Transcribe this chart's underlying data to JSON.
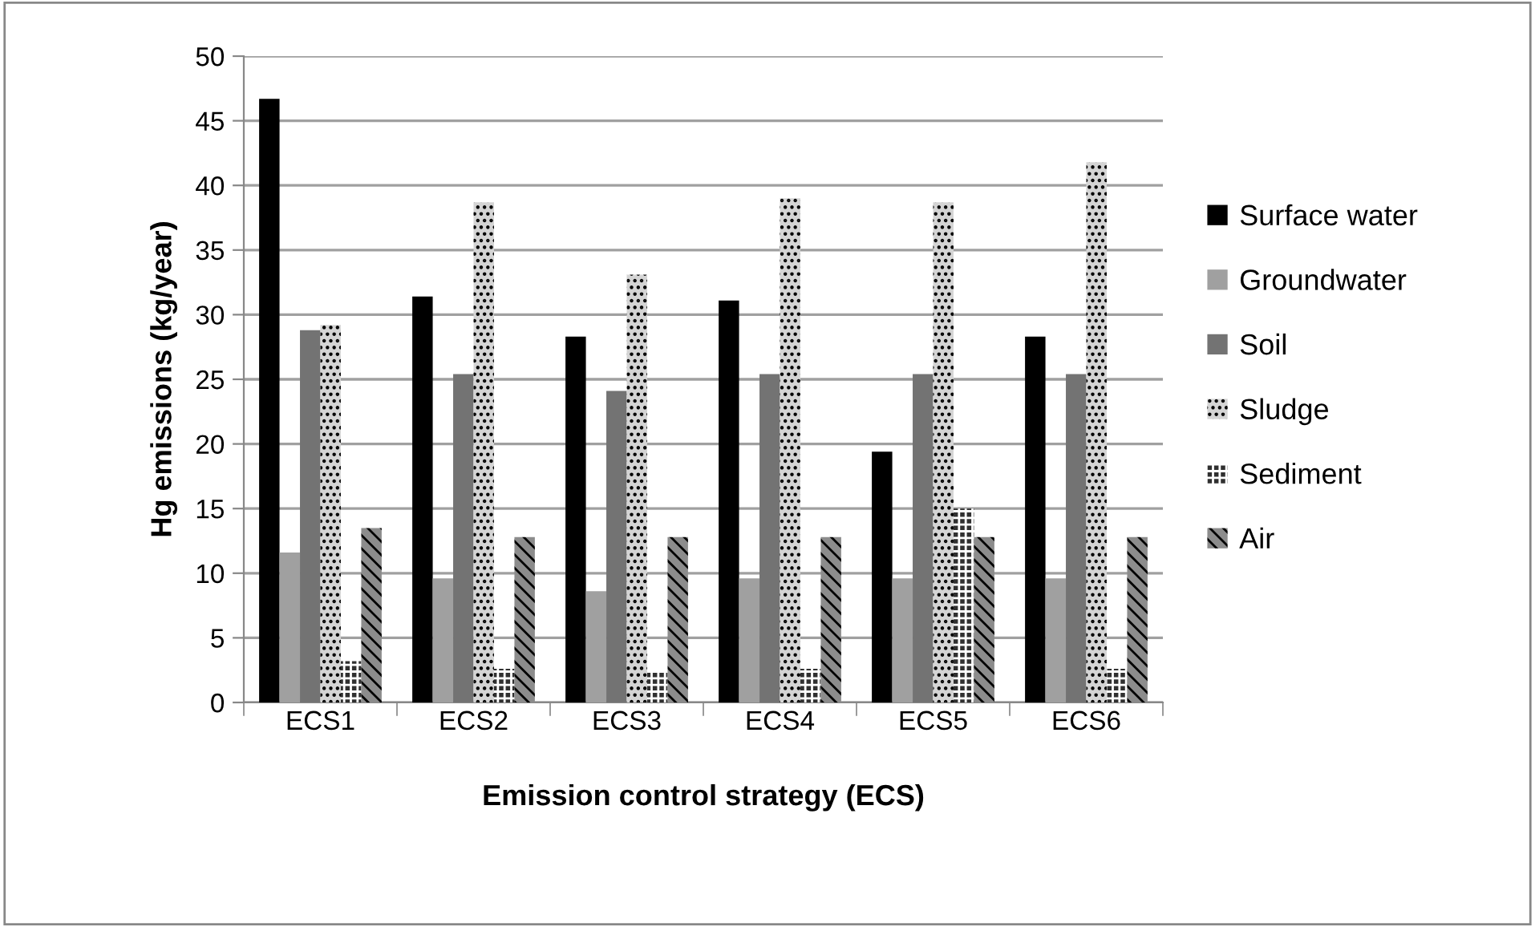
{
  "chart_data": {
    "type": "bar",
    "xlabel": "Emission control strategy (ECS)",
    "ylabel": "Hg emissions (kg/year)",
    "categories": [
      "ECS1",
      "ECS2",
      "ECS3",
      "ECS4",
      "ECS5",
      "ECS6"
    ],
    "series": [
      {
        "name": "Surface water",
        "color": "#000000",
        "values": [
          46.7,
          31.4,
          28.3,
          31.1,
          19.4,
          28.3
        ]
      },
      {
        "name": "Groundwater",
        "color": "#a0a0a0",
        "values": [
          11.6,
          9.6,
          8.6,
          9.6,
          9.6,
          9.6
        ]
      },
      {
        "name": "Soil",
        "color": "#737373",
        "values": [
          28.8,
          25.4,
          24.1,
          25.4,
          25.4,
          25.4
        ]
      },
      {
        "name": "Sludge",
        "color": "#d4d4d4",
        "values": [
          29.2,
          38.7,
          33.1,
          39.0,
          38.7,
          41.8
        ]
      },
      {
        "name": "Sediment",
        "color": "#303030",
        "values": [
          3.2,
          2.6,
          2.4,
          2.6,
          15.0,
          2.6
        ]
      },
      {
        "name": "Air",
        "color": "#8c8c8c",
        "values": [
          13.5,
          12.8,
          12.8,
          12.8,
          12.8,
          12.8
        ]
      }
    ],
    "ylim": [
      0,
      50
    ],
    "yticks": [
      0,
      5,
      10,
      15,
      20,
      25,
      30,
      35,
      40,
      45,
      50
    ],
    "grid": "y",
    "legend": "right"
  }
}
